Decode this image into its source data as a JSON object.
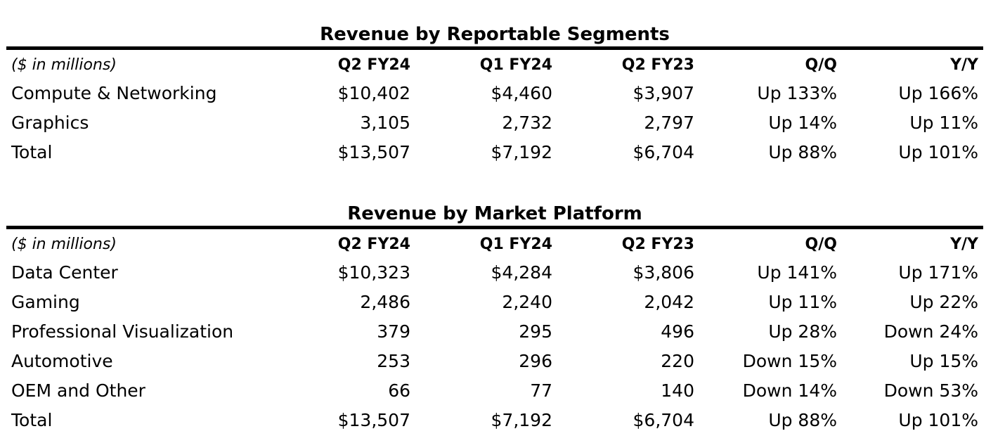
{
  "segments": {
    "title": "Revenue by Reportable Segments",
    "header": {
      "units": "($ in millions)",
      "columns": [
        "Q2 FY24",
        "Q1 FY24",
        "Q2 FY23",
        "Q/Q",
        "Y/Y"
      ]
    },
    "rows": [
      {
        "label": "Compute & Networking",
        "q2fy24": "$10,402",
        "q1fy24": "$4,460",
        "q2fy23": "$3,907",
        "qq": "Up 133%",
        "yy": "Up 166%"
      },
      {
        "label": "Graphics",
        "q2fy24": "3,105",
        "q1fy24": "2,732",
        "q2fy23": "2,797",
        "qq": "Up 14%",
        "yy": "Up 11%"
      },
      {
        "label": "Total",
        "q2fy24": "$13,507",
        "q1fy24": "$7,192",
        "q2fy23": "$6,704",
        "qq": "Up 88%",
        "yy": "Up 101%"
      }
    ]
  },
  "platform": {
    "title": "Revenue by Market Platform",
    "header": {
      "units": "($ in millions)",
      "columns": [
        "Q2 FY24",
        "Q1 FY24",
        "Q2 FY23",
        "Q/Q",
        "Y/Y"
      ]
    },
    "rows": [
      {
        "label": "Data Center",
        "q2fy24": "$10,323",
        "q1fy24": "$4,284",
        "q2fy23": "$3,806",
        "qq": "Up 141%",
        "yy": "Up 171%"
      },
      {
        "label": "Gaming",
        "q2fy24": "2,486",
        "q1fy24": "2,240",
        "q2fy23": "2,042",
        "qq": "Up 11%",
        "yy": "Up 22%"
      },
      {
        "label": "Professional Visualization",
        "q2fy24": "379",
        "q1fy24": "295",
        "q2fy23": "496",
        "qq": "Up 28%",
        "yy": "Down 24%"
      },
      {
        "label": "Automotive",
        "q2fy24": "253",
        "q1fy24": "296",
        "q2fy23": "220",
        "qq": "Down 15%",
        "yy": "Up 15%"
      },
      {
        "label": "OEM and Other",
        "q2fy24": "66",
        "q1fy24": "77",
        "q2fy23": "140",
        "qq": "Down 14%",
        "yy": "Down 53%"
      },
      {
        "label": "Total",
        "q2fy24": "$13,507",
        "q1fy24": "$7,192",
        "q2fy23": "$6,704",
        "qq": "Up 88%",
        "yy": "Up 101%"
      }
    ]
  }
}
